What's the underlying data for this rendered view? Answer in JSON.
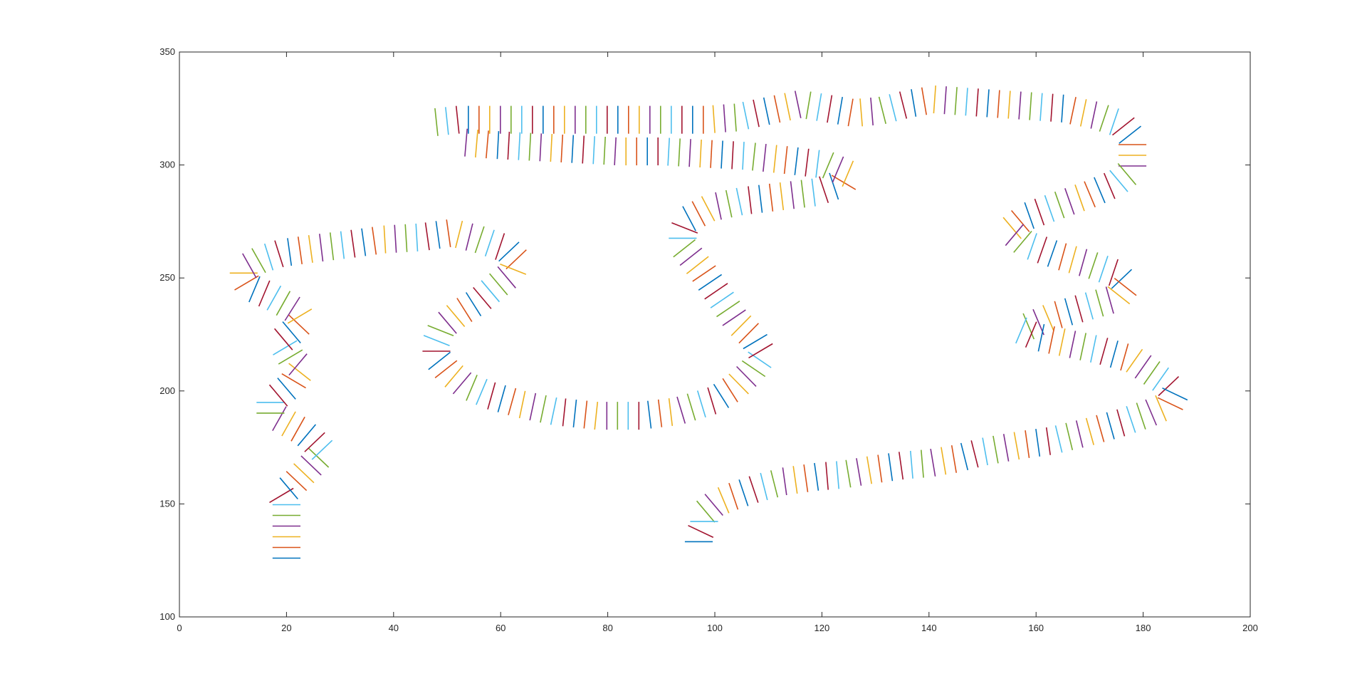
{
  "chart_data": {
    "type": "line",
    "title": "",
    "xlabel": "",
    "ylabel": "",
    "xlim": [
      0,
      200
    ],
    "ylim": [
      100,
      350
    ],
    "grid": false,
    "xticks": [
      0,
      20,
      40,
      60,
      80,
      100,
      120,
      140,
      160,
      180,
      200
    ],
    "yticks": [
      100,
      150,
      200,
      250,
      300,
      350
    ],
    "color_cycle": [
      "#0072BD",
      "#D95319",
      "#EDB120",
      "#7E2F8E",
      "#77AC30",
      "#4DBEEE",
      "#A2142F"
    ],
    "segment_half_length": 2.6,
    "series": [
      {
        "path": [
          [
            20,
            126
          ],
          [
            20,
            134
          ],
          [
            20,
            142
          ],
          [
            20,
            150
          ],
          [
            19,
            154
          ],
          [
            21,
            158
          ],
          [
            23,
            163
          ],
          [
            25,
            168
          ],
          [
            27,
            173
          ],
          [
            25,
            178
          ],
          [
            23,
            182
          ],
          [
            20,
            186
          ],
          [
            17,
            190
          ],
          [
            17,
            195
          ],
          [
            19,
            199
          ],
          [
            21,
            203
          ],
          [
            22,
            207
          ],
          [
            23,
            210
          ],
          [
            21,
            214
          ],
          [
            20,
            218
          ],
          [
            19,
            222
          ],
          [
            21,
            226
          ],
          [
            23,
            231
          ],
          [
            22,
            235
          ],
          [
            20,
            238
          ],
          [
            17,
            242
          ],
          [
            13,
            246
          ],
          [
            12,
            250
          ],
          [
            12,
            254
          ],
          [
            15,
            258
          ],
          [
            19,
            261
          ],
          [
            25,
            263
          ],
          [
            32,
            265
          ],
          [
            38,
            267
          ],
          [
            45,
            268
          ],
          [
            51,
            270
          ],
          [
            56,
            267
          ],
          [
            61,
            263
          ],
          [
            63,
            258
          ],
          [
            62,
            252
          ],
          [
            59,
            246
          ],
          [
            56,
            240
          ],
          [
            52,
            234
          ],
          [
            49,
            228
          ],
          [
            48,
            222
          ],
          [
            48,
            215
          ],
          [
            50,
            209
          ],
          [
            53,
            203
          ],
          [
            58,
            198
          ],
          [
            64,
            194
          ],
          [
            70,
            191
          ],
          [
            78,
            189
          ],
          [
            86,
            189
          ],
          [
            93,
            191
          ],
          [
            100,
            196
          ],
          [
            104,
            202
          ],
          [
            107,
            209
          ],
          [
            109,
            216
          ],
          [
            107,
            224
          ],
          [
            104,
            231
          ],
          [
            102,
            238
          ],
          [
            100,
            245
          ],
          [
            98,
            252
          ],
          [
            96,
            258
          ],
          [
            94,
            264
          ],
          [
            94,
            270
          ],
          [
            95,
            276
          ],
          [
            99,
            281
          ],
          [
            105,
            284
          ],
          [
            112,
            286
          ],
          [
            119,
            288
          ],
          [
            124,
            292
          ],
          [
            125,
            296
          ],
          [
            121,
            300
          ],
          [
            114,
            302
          ],
          [
            106,
            304
          ],
          [
            98,
            305
          ],
          [
            90,
            306
          ],
          [
            82,
            306
          ],
          [
            74,
            307
          ],
          [
            66,
            308
          ],
          [
            58,
            309
          ],
          [
            53,
            310
          ]
        ]
      },
      {
        "path": [
          [
            48,
            319
          ],
          [
            52,
            320
          ],
          [
            60,
            320
          ],
          [
            70,
            320
          ],
          [
            80,
            320
          ],
          [
            90,
            320
          ],
          [
            98,
            320
          ],
          [
            104,
            321
          ],
          [
            110,
            324
          ],
          [
            116,
            327
          ],
          [
            121,
            325
          ],
          [
            126,
            323
          ],
          [
            131,
            324
          ],
          [
            136,
            327
          ],
          [
            141,
            329
          ],
          [
            147,
            328
          ],
          [
            153,
            327
          ],
          [
            159,
            326
          ],
          [
            165,
            325
          ],
          [
            171,
            322
          ],
          [
            176,
            318
          ],
          [
            178,
            312
          ],
          [
            178,
            305
          ],
          [
            178,
            298
          ],
          [
            175,
            292
          ],
          [
            170,
            287
          ],
          [
            164,
            282
          ],
          [
            158,
            277
          ],
          [
            155,
            271
          ],
          [
            158,
            265
          ],
          [
            164,
            260
          ],
          [
            170,
            256
          ],
          [
            175,
            252
          ],
          [
            177,
            247
          ],
          [
            175,
            241
          ],
          [
            169,
            237
          ],
          [
            163,
            233
          ],
          [
            159,
            229
          ],
          [
            157,
            227
          ],
          [
            160,
            224
          ],
          [
            166,
            221
          ],
          [
            172,
            218
          ],
          [
            178,
            214
          ],
          [
            181,
            209
          ],
          [
            184,
            204
          ],
          [
            186,
            199
          ],
          [
            185,
            194
          ],
          [
            181,
            190
          ],
          [
            176,
            186
          ],
          [
            170,
            182
          ],
          [
            163,
            178
          ],
          [
            157,
            176
          ],
          [
            150,
            173
          ],
          [
            145,
            170
          ],
          [
            140,
            168
          ],
          [
            135,
            167
          ],
          [
            129,
            165
          ],
          [
            124,
            163
          ],
          [
            119,
            162
          ],
          [
            113,
            160
          ],
          [
            108,
            157
          ],
          [
            103,
            153
          ],
          [
            100,
            150
          ],
          [
            98,
            146
          ],
          [
            98,
            141
          ],
          [
            97,
            136
          ],
          [
            97,
            133
          ]
        ]
      }
    ]
  }
}
